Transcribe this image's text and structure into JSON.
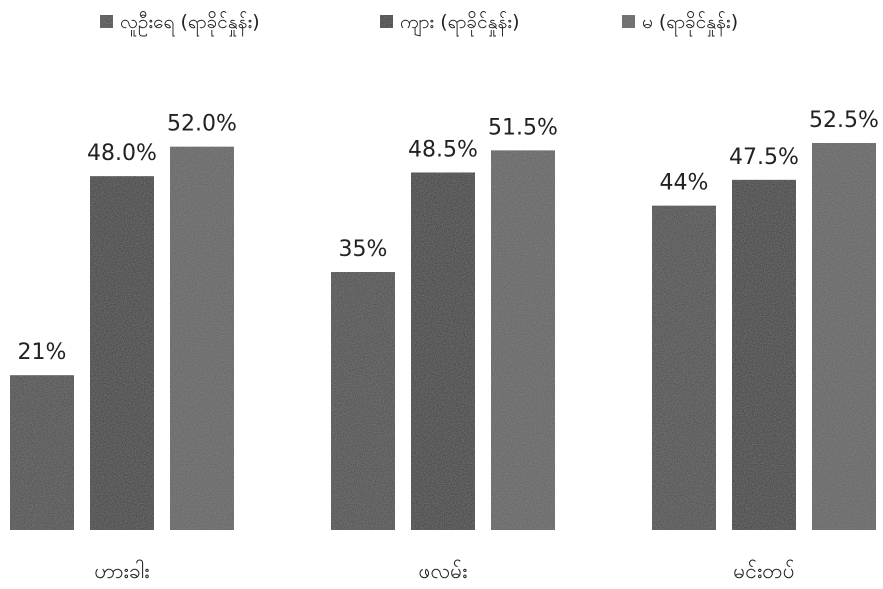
{
  "chart_data": {
    "type": "bar",
    "title": "",
    "xlabel": "",
    "ylabel": "",
    "ylim": [
      0,
      55
    ],
    "grid": false,
    "legend_position": "top",
    "categories": [
      "ဟားခါး",
      "ဖလမ်း",
      "မင်းတပ်"
    ],
    "series": [
      {
        "name": "လူဦးရေ (ရာခိုင်နှုန်း)",
        "values": [
          21,
          35,
          44
        ],
        "labels": [
          "21%",
          "35%",
          "44%"
        ],
        "color": "#3f3f3f"
      },
      {
        "name": "ကျား (ရာခိုင်နှုန်း)",
        "values": [
          48.0,
          48.5,
          47.5
        ],
        "labels": [
          "48.0%",
          "48.5%",
          "47.5%"
        ],
        "color": "#2e2e2e"
      },
      {
        "name": "မ (ရာခိုင်နှုန်း)",
        "values": [
          52.0,
          51.5,
          52.5
        ],
        "labels": [
          "52.0%",
          "51.5%",
          "52.5%"
        ],
        "color": "#5a5a5a"
      }
    ]
  }
}
